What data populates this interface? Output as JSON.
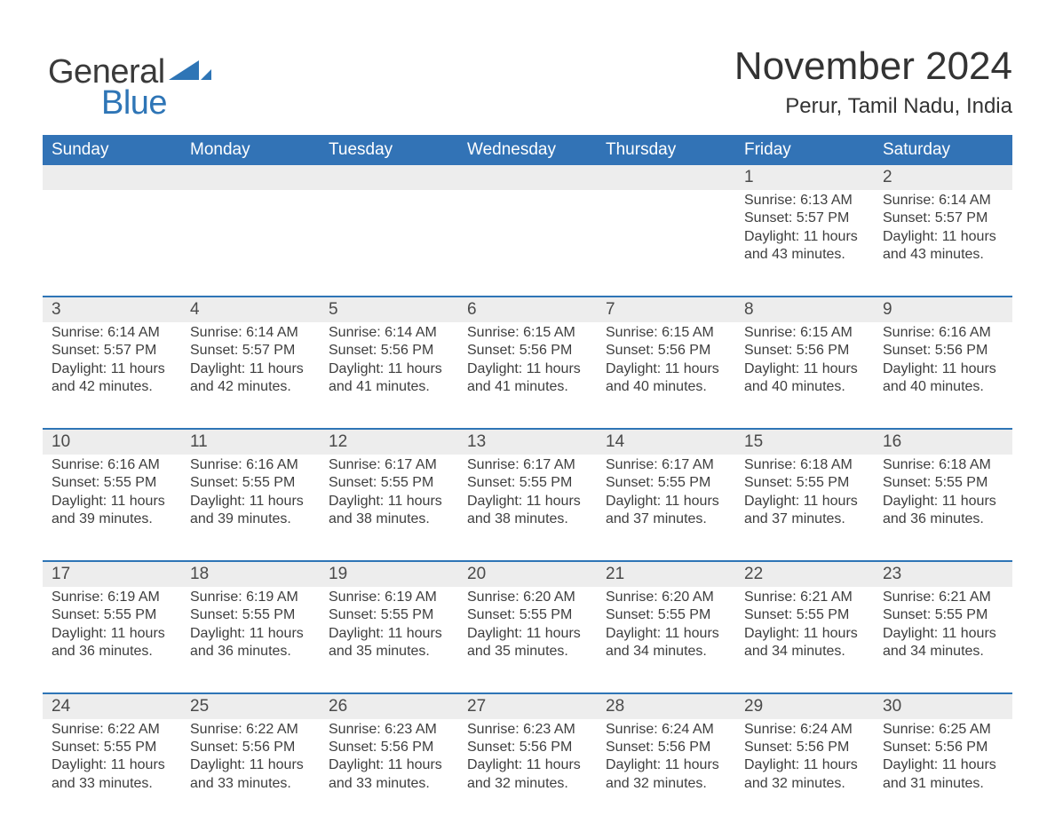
{
  "logo": {
    "general": "General",
    "blue": "Blue",
    "triangle_color": "#2e75b6"
  },
  "header": {
    "month": "November 2024",
    "location": "Perur, Tamil Nadu, India"
  },
  "colors": {
    "header_bg": "#3273b6",
    "header_text": "#ffffff",
    "line": "#2e75b6",
    "dayband_bg": "#ededed",
    "text": "#3e3e3e",
    "page_bg": "#ffffff"
  },
  "daysOfWeek": [
    "Sunday",
    "Monday",
    "Tuesday",
    "Wednesday",
    "Thursday",
    "Friday",
    "Saturday"
  ],
  "weeks": [
    [
      null,
      null,
      null,
      null,
      null,
      {
        "n": "1",
        "sunrise": "Sunrise: 6:13 AM",
        "sunset": "Sunset: 5:57 PM",
        "daylight1": "Daylight: 11 hours",
        "daylight2": "and 43 minutes."
      },
      {
        "n": "2",
        "sunrise": "Sunrise: 6:14 AM",
        "sunset": "Sunset: 5:57 PM",
        "daylight1": "Daylight: 11 hours",
        "daylight2": "and 43 minutes."
      }
    ],
    [
      {
        "n": "3",
        "sunrise": "Sunrise: 6:14 AM",
        "sunset": "Sunset: 5:57 PM",
        "daylight1": "Daylight: 11 hours",
        "daylight2": "and 42 minutes."
      },
      {
        "n": "4",
        "sunrise": "Sunrise: 6:14 AM",
        "sunset": "Sunset: 5:57 PM",
        "daylight1": "Daylight: 11 hours",
        "daylight2": "and 42 minutes."
      },
      {
        "n": "5",
        "sunrise": "Sunrise: 6:14 AM",
        "sunset": "Sunset: 5:56 PM",
        "daylight1": "Daylight: 11 hours",
        "daylight2": "and 41 minutes."
      },
      {
        "n": "6",
        "sunrise": "Sunrise: 6:15 AM",
        "sunset": "Sunset: 5:56 PM",
        "daylight1": "Daylight: 11 hours",
        "daylight2": "and 41 minutes."
      },
      {
        "n": "7",
        "sunrise": "Sunrise: 6:15 AM",
        "sunset": "Sunset: 5:56 PM",
        "daylight1": "Daylight: 11 hours",
        "daylight2": "and 40 minutes."
      },
      {
        "n": "8",
        "sunrise": "Sunrise: 6:15 AM",
        "sunset": "Sunset: 5:56 PM",
        "daylight1": "Daylight: 11 hours",
        "daylight2": "and 40 minutes."
      },
      {
        "n": "9",
        "sunrise": "Sunrise: 6:16 AM",
        "sunset": "Sunset: 5:56 PM",
        "daylight1": "Daylight: 11 hours",
        "daylight2": "and 40 minutes."
      }
    ],
    [
      {
        "n": "10",
        "sunrise": "Sunrise: 6:16 AM",
        "sunset": "Sunset: 5:55 PM",
        "daylight1": "Daylight: 11 hours",
        "daylight2": "and 39 minutes."
      },
      {
        "n": "11",
        "sunrise": "Sunrise: 6:16 AM",
        "sunset": "Sunset: 5:55 PM",
        "daylight1": "Daylight: 11 hours",
        "daylight2": "and 39 minutes."
      },
      {
        "n": "12",
        "sunrise": "Sunrise: 6:17 AM",
        "sunset": "Sunset: 5:55 PM",
        "daylight1": "Daylight: 11 hours",
        "daylight2": "and 38 minutes."
      },
      {
        "n": "13",
        "sunrise": "Sunrise: 6:17 AM",
        "sunset": "Sunset: 5:55 PM",
        "daylight1": "Daylight: 11 hours",
        "daylight2": "and 38 minutes."
      },
      {
        "n": "14",
        "sunrise": "Sunrise: 6:17 AM",
        "sunset": "Sunset: 5:55 PM",
        "daylight1": "Daylight: 11 hours",
        "daylight2": "and 37 minutes."
      },
      {
        "n": "15",
        "sunrise": "Sunrise: 6:18 AM",
        "sunset": "Sunset: 5:55 PM",
        "daylight1": "Daylight: 11 hours",
        "daylight2": "and 37 minutes."
      },
      {
        "n": "16",
        "sunrise": "Sunrise: 6:18 AM",
        "sunset": "Sunset: 5:55 PM",
        "daylight1": "Daylight: 11 hours",
        "daylight2": "and 36 minutes."
      }
    ],
    [
      {
        "n": "17",
        "sunrise": "Sunrise: 6:19 AM",
        "sunset": "Sunset: 5:55 PM",
        "daylight1": "Daylight: 11 hours",
        "daylight2": "and 36 minutes."
      },
      {
        "n": "18",
        "sunrise": "Sunrise: 6:19 AM",
        "sunset": "Sunset: 5:55 PM",
        "daylight1": "Daylight: 11 hours",
        "daylight2": "and 36 minutes."
      },
      {
        "n": "19",
        "sunrise": "Sunrise: 6:19 AM",
        "sunset": "Sunset: 5:55 PM",
        "daylight1": "Daylight: 11 hours",
        "daylight2": "and 35 minutes."
      },
      {
        "n": "20",
        "sunrise": "Sunrise: 6:20 AM",
        "sunset": "Sunset: 5:55 PM",
        "daylight1": "Daylight: 11 hours",
        "daylight2": "and 35 minutes."
      },
      {
        "n": "21",
        "sunrise": "Sunrise: 6:20 AM",
        "sunset": "Sunset: 5:55 PM",
        "daylight1": "Daylight: 11 hours",
        "daylight2": "and 34 minutes."
      },
      {
        "n": "22",
        "sunrise": "Sunrise: 6:21 AM",
        "sunset": "Sunset: 5:55 PM",
        "daylight1": "Daylight: 11 hours",
        "daylight2": "and 34 minutes."
      },
      {
        "n": "23",
        "sunrise": "Sunrise: 6:21 AM",
        "sunset": "Sunset: 5:55 PM",
        "daylight1": "Daylight: 11 hours",
        "daylight2": "and 34 minutes."
      }
    ],
    [
      {
        "n": "24",
        "sunrise": "Sunrise: 6:22 AM",
        "sunset": "Sunset: 5:55 PM",
        "daylight1": "Daylight: 11 hours",
        "daylight2": "and 33 minutes."
      },
      {
        "n": "25",
        "sunrise": "Sunrise: 6:22 AM",
        "sunset": "Sunset: 5:56 PM",
        "daylight1": "Daylight: 11 hours",
        "daylight2": "and 33 minutes."
      },
      {
        "n": "26",
        "sunrise": "Sunrise: 6:23 AM",
        "sunset": "Sunset: 5:56 PM",
        "daylight1": "Daylight: 11 hours",
        "daylight2": "and 33 minutes."
      },
      {
        "n": "27",
        "sunrise": "Sunrise: 6:23 AM",
        "sunset": "Sunset: 5:56 PM",
        "daylight1": "Daylight: 11 hours",
        "daylight2": "and 32 minutes."
      },
      {
        "n": "28",
        "sunrise": "Sunrise: 6:24 AM",
        "sunset": "Sunset: 5:56 PM",
        "daylight1": "Daylight: 11 hours",
        "daylight2": "and 32 minutes."
      },
      {
        "n": "29",
        "sunrise": "Sunrise: 6:24 AM",
        "sunset": "Sunset: 5:56 PM",
        "daylight1": "Daylight: 11 hours",
        "daylight2": "and 32 minutes."
      },
      {
        "n": "30",
        "sunrise": "Sunrise: 6:25 AM",
        "sunset": "Sunset: 5:56 PM",
        "daylight1": "Daylight: 11 hours",
        "daylight2": "and 31 minutes."
      }
    ]
  ]
}
